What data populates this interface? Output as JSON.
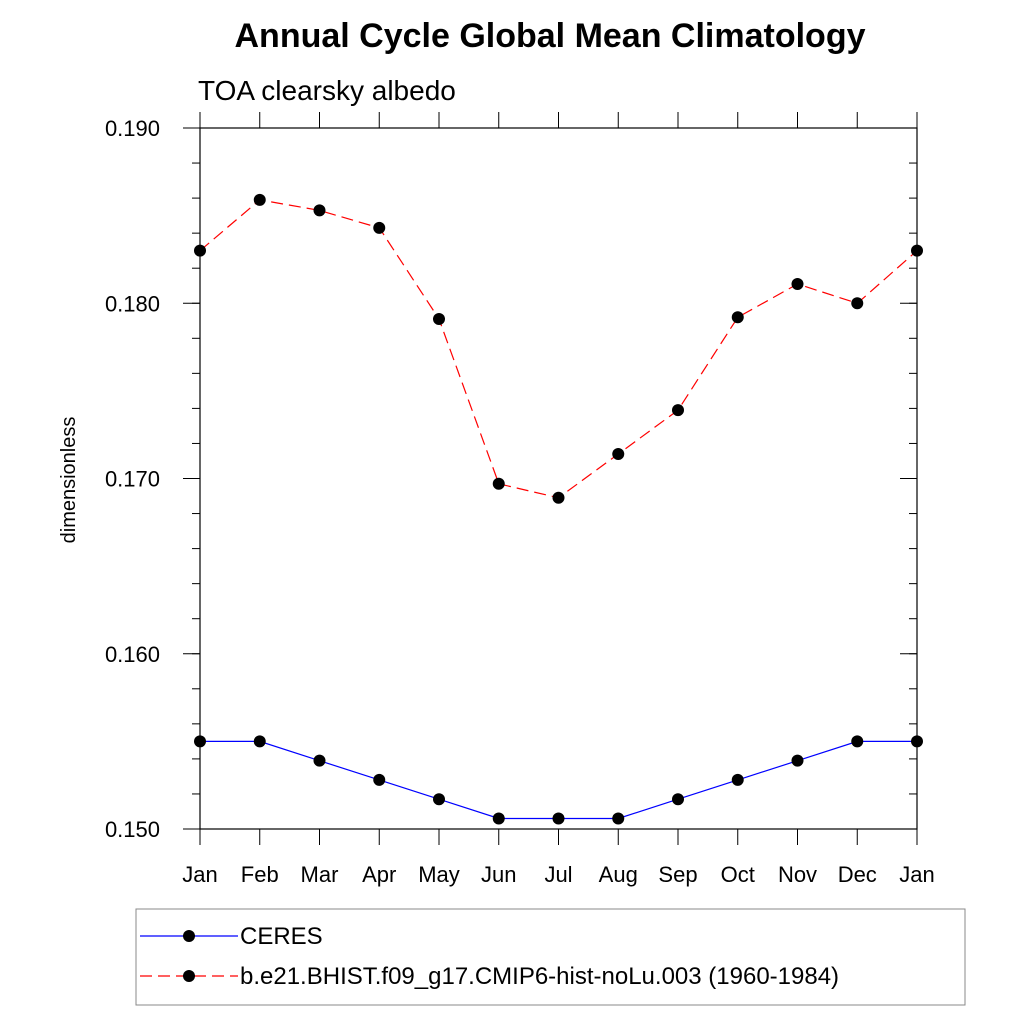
{
  "chart_data": {
    "type": "line",
    "title": "Annual Cycle Global Mean Climatology",
    "subtitle": "TOA clearsky albedo",
    "xlabel": "",
    "ylabel": "dimensionless",
    "categories": [
      "Jan",
      "Feb",
      "Mar",
      "Apr",
      "May",
      "Jun",
      "Jul",
      "Aug",
      "Sep",
      "Oct",
      "Nov",
      "Dec",
      "Jan"
    ],
    "y_ticks": [
      "0.150",
      "0.160",
      "0.170",
      "0.180",
      "0.190"
    ],
    "ylim": [
      0.15,
      0.19
    ],
    "grid": false,
    "legend_position": "bottom",
    "series": [
      {
        "name": "CERES",
        "color": "#0000ff",
        "dash": "solid",
        "marker": "filled-circle",
        "values": [
          0.155,
          0.155,
          0.1539,
          0.1528,
          0.1517,
          0.1506,
          0.1506,
          0.1506,
          0.1517,
          0.1528,
          0.1539,
          0.155,
          0.155
        ]
      },
      {
        "name": "b.e21.BHIST.f09_g17.CMIP6-hist-noLu.003 (1960-1984)",
        "color": "#ff0000",
        "dash": "dashed",
        "marker": "filled-circle",
        "values": [
          0.183,
          0.1859,
          0.1853,
          0.1843,
          0.1791,
          0.1697,
          0.1689,
          0.1714,
          0.1739,
          0.1792,
          0.1811,
          0.18,
          0.183
        ]
      }
    ]
  }
}
